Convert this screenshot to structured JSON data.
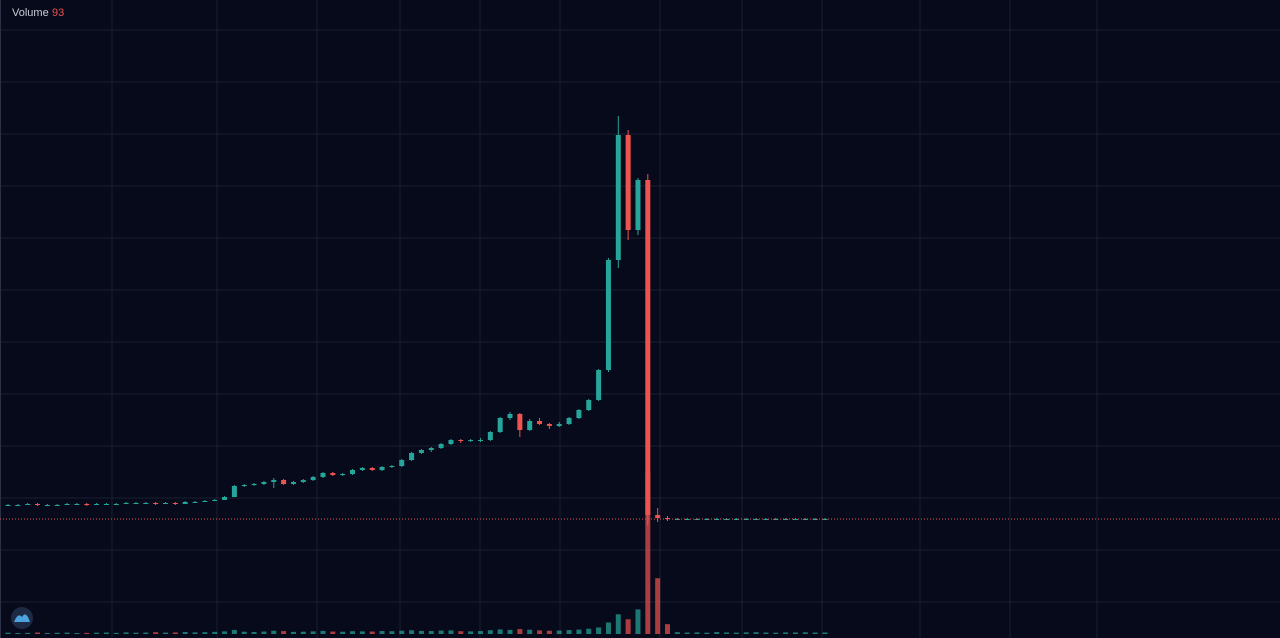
{
  "chart_data": {
    "type": "candlestick",
    "volume_name": "Volume",
    "ylim": [
      0,
      430
    ],
    "volume_ylim": [
      0,
      10000
    ],
    "up_color": "#26a69a",
    "down_color": "#ef5350",
    "grid": true,
    "ohlc": [
      [
        25,
        26,
        24,
        25
      ],
      [
        25,
        26,
        24,
        25
      ],
      [
        25,
        27,
        25,
        26
      ],
      [
        26,
        27,
        24,
        25
      ],
      [
        25,
        26,
        24,
        25
      ],
      [
        25,
        26,
        24,
        25
      ],
      [
        25,
        27,
        25,
        26
      ],
      [
        26,
        27,
        25,
        26
      ],
      [
        26,
        27,
        24,
        25
      ],
      [
        25,
        27,
        25,
        26
      ],
      [
        26,
        27,
        25,
        26
      ],
      [
        26,
        27,
        25,
        26
      ],
      [
        26,
        28,
        26,
        27
      ],
      [
        27,
        28,
        26,
        27
      ],
      [
        27,
        28,
        26,
        27
      ],
      [
        27,
        28,
        25,
        26
      ],
      [
        26,
        28,
        26,
        27
      ],
      [
        27,
        28,
        25,
        26
      ],
      [
        26,
        29,
        26,
        28
      ],
      [
        28,
        29,
        27,
        28
      ],
      [
        28,
        30,
        28,
        29
      ],
      [
        29,
        31,
        29,
        30
      ],
      [
        30,
        34,
        30,
        33
      ],
      [
        33,
        45,
        33,
        44
      ],
      [
        44,
        46,
        43,
        45
      ],
      [
        45,
        47,
        44,
        46
      ],
      [
        46,
        49,
        45,
        48
      ],
      [
        48,
        52,
        42,
        50
      ],
      [
        50,
        51,
        45,
        46
      ],
      [
        46,
        49,
        45,
        48
      ],
      [
        48,
        51,
        47,
        50
      ],
      [
        50,
        54,
        49,
        53
      ],
      [
        53,
        58,
        52,
        57
      ],
      [
        57,
        58,
        54,
        55
      ],
      [
        55,
        57,
        54,
        56
      ],
      [
        56,
        61,
        55,
        60
      ],
      [
        60,
        63,
        59,
        62
      ],
      [
        62,
        63,
        59,
        60
      ],
      [
        60,
        64,
        59,
        63
      ],
      [
        63,
        65,
        62,
        64
      ],
      [
        64,
        71,
        63,
        70
      ],
      [
        70,
        78,
        69,
        77
      ],
      [
        77,
        81,
        76,
        80
      ],
      [
        80,
        83,
        78,
        82
      ],
      [
        82,
        87,
        81,
        86
      ],
      [
        86,
        91,
        85,
        90
      ],
      [
        90,
        91,
        87,
        89
      ],
      [
        89,
        91,
        88,
        90
      ],
      [
        90,
        92,
        88,
        90
      ],
      [
        90,
        99,
        89,
        98
      ],
      [
        98,
        113,
        97,
        112
      ],
      [
        112,
        118,
        110,
        116
      ],
      [
        116,
        117,
        93,
        100
      ],
      [
        100,
        111,
        99,
        109
      ],
      [
        109,
        112,
        105,
        106
      ],
      [
        106,
        107,
        101,
        104
      ],
      [
        104,
        108,
        103,
        106
      ],
      [
        106,
        113,
        105,
        112
      ],
      [
        112,
        121,
        111,
        120
      ],
      [
        120,
        131,
        119,
        130
      ],
      [
        130,
        161,
        129,
        160
      ],
      [
        160,
        272,
        158,
        270
      ],
      [
        270,
        414,
        262,
        395
      ],
      [
        395,
        400,
        290,
        300
      ],
      [
        300,
        352,
        295,
        350
      ],
      [
        350,
        356,
        5,
        15
      ],
      [
        15,
        22,
        8,
        12
      ],
      [
        12,
        14,
        9,
        11
      ],
      [
        11,
        12,
        10,
        11
      ],
      [
        11,
        12,
        10,
        11
      ],
      [
        11,
        12,
        10,
        11
      ],
      [
        11,
        12,
        10,
        11
      ],
      [
        11,
        12,
        10,
        11
      ],
      [
        11,
        12,
        10,
        11
      ],
      [
        11,
        12,
        10,
        11
      ],
      [
        11,
        12,
        10,
        11
      ],
      [
        11,
        12,
        10,
        11
      ],
      [
        11,
        12,
        10,
        11
      ],
      [
        11,
        12,
        10,
        11
      ],
      [
        11,
        12,
        10,
        11
      ],
      [
        11,
        12,
        10,
        11
      ],
      [
        11,
        12,
        10,
        11
      ],
      [
        11,
        12,
        10,
        11
      ],
      [
        11,
        12,
        10,
        11
      ]
    ],
    "volume": [
      80,
      60,
      70,
      90,
      60,
      75,
      85,
      60,
      70,
      80,
      90,
      70,
      100,
      80,
      90,
      110,
      85,
      95,
      120,
      100,
      110,
      130,
      160,
      250,
      140,
      120,
      150,
      200,
      180,
      130,
      140,
      160,
      190,
      150,
      140,
      170,
      160,
      150,
      180,
      170,
      200,
      230,
      190,
      180,
      210,
      220,
      170,
      160,
      180,
      230,
      280,
      250,
      300,
      260,
      220,
      200,
      210,
      240,
      270,
      320,
      400,
      700,
      1200,
      900,
      1500,
      9800,
      3400,
      600,
      110,
      90,
      100,
      80,
      120,
      95,
      85,
      100,
      110,
      90,
      80,
      100,
      95,
      105,
      90,
      93
    ]
  }
}
